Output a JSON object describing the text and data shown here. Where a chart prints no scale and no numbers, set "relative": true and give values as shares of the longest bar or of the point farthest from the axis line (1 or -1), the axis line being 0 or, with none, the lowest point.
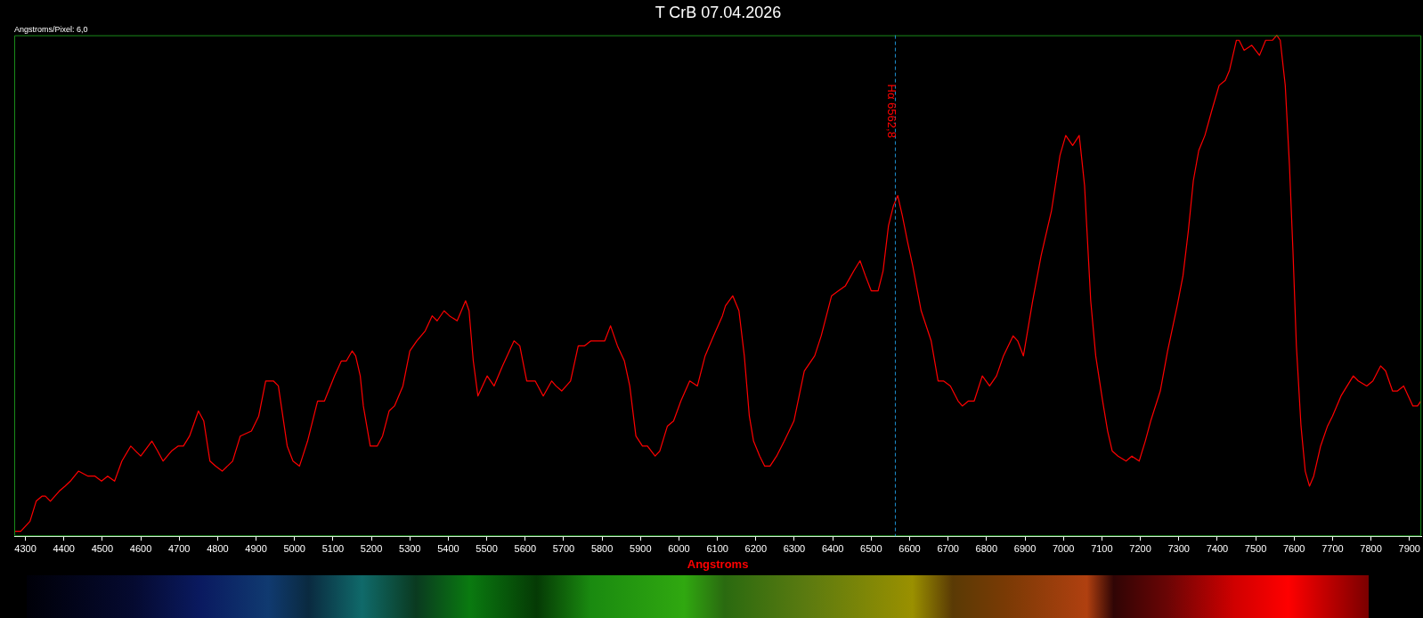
{
  "chart_data": {
    "type": "line",
    "title": "T CrB 07.04.2026",
    "xlabel": "Angstroms",
    "annotations": [
      "Angstroms/Pixel: 6,0"
    ],
    "relative": true,
    "grid": false,
    "legend": false,
    "marker": "none",
    "line_style": "solid",
    "xlim": [
      4271,
      7931
    ],
    "xticks": [
      4300,
      4400,
      4500,
      4600,
      4700,
      4800,
      4900,
      5000,
      5100,
      5200,
      5300,
      5400,
      5500,
      5600,
      5700,
      5800,
      5900,
      6000,
      6100,
      6200,
      6300,
      6400,
      6500,
      6600,
      6700,
      6800,
      6900,
      7000,
      7100,
      7200,
      7300,
      7400,
      7500,
      7600,
      7700,
      7800,
      7900
    ],
    "x": [
      4271,
      4288,
      4312,
      4328,
      4343,
      4352,
      4365,
      4388,
      4403,
      4417,
      4438,
      4463,
      4481,
      4498,
      4514,
      4532,
      4551,
      4574,
      4587,
      4600,
      4629,
      4644,
      4658,
      4680,
      4697,
      4711,
      4727,
      4750,
      4764,
      4780,
      4795,
      4812,
      4839,
      4859,
      4888,
      4907,
      4925,
      4945,
      4958,
      4981,
      4996,
      5013,
      5034,
      5060,
      5078,
      5104,
      5122,
      5135,
      5150,
      5159,
      5171,
      5179,
      5197,
      5215,
      5229,
      5246,
      5260,
      5282,
      5300,
      5318,
      5340,
      5358,
      5371,
      5389,
      5403,
      5423,
      5445,
      5454,
      5465,
      5477,
      5501,
      5519,
      5541,
      5571,
      5586,
      5604,
      5626,
      5647,
      5669,
      5680,
      5695,
      5718,
      5738,
      5754,
      5771,
      5793,
      5807,
      5822,
      5840,
      5858,
      5872,
      5888,
      5905,
      5918,
      5938,
      5950,
      5970,
      5986,
      6005,
      6028,
      6048,
      6068,
      6090,
      6113,
      6121,
      6140,
      6156,
      6170,
      6183,
      6194,
      6210,
      6223,
      6237,
      6254,
      6274,
      6299,
      6326,
      6353,
      6370,
      6397,
      6415,
      6433,
      6455,
      6471,
      6485,
      6500,
      6518,
      6531,
      6545,
      6558,
      6569,
      6581,
      6594,
      6608,
      6630,
      6656,
      6674,
      6688,
      6706,
      6726,
      6737,
      6753,
      6768,
      6789,
      6808,
      6826,
      6844,
      6869,
      6881,
      6896,
      6920,
      6942,
      6969,
      6991,
      7006,
      7024,
      7041,
      7044,
      7055,
      7071,
      7084,
      7102,
      7115,
      7127,
      7142,
      7163,
      7178,
      7197,
      7213,
      7227,
      7252,
      7271,
      7296,
      7311,
      7325,
      7338,
      7352,
      7368,
      7386,
      7405,
      7421,
      7432,
      7450,
      7457,
      7470,
      7490,
      7510,
      7526,
      7544,
      7555,
      7564,
      7577,
      7588,
      7597,
      7606,
      7618,
      7629,
      7640,
      7651,
      7669,
      7687,
      7700,
      7722,
      7738,
      7754,
      7767,
      7789,
      7805,
      7825,
      7838,
      7856,
      7869,
      7885,
      7909,
      7921,
      7930
    ],
    "series": [
      {
        "color": "#ff0000",
        "values": [
          0.01,
          0.01,
          0.03,
          0.07,
          0.08,
          0.08,
          0.07,
          0.09,
          0.1,
          0.11,
          0.13,
          0.12,
          0.12,
          0.11,
          0.12,
          0.11,
          0.15,
          0.18,
          0.17,
          0.16,
          0.19,
          0.17,
          0.15,
          0.17,
          0.18,
          0.18,
          0.2,
          0.25,
          0.23,
          0.15,
          0.14,
          0.13,
          0.15,
          0.2,
          0.21,
          0.24,
          0.31,
          0.31,
          0.3,
          0.18,
          0.15,
          0.14,
          0.19,
          0.27,
          0.27,
          0.32,
          0.35,
          0.35,
          0.37,
          0.36,
          0.32,
          0.26,
          0.18,
          0.18,
          0.2,
          0.25,
          0.26,
          0.3,
          0.37,
          0.39,
          0.41,
          0.44,
          0.43,
          0.45,
          0.44,
          0.43,
          0.47,
          0.45,
          0.35,
          0.28,
          0.32,
          0.3,
          0.34,
          0.39,
          0.38,
          0.31,
          0.31,
          0.28,
          0.31,
          0.3,
          0.29,
          0.31,
          0.38,
          0.38,
          0.39,
          0.39,
          0.39,
          0.42,
          0.38,
          0.35,
          0.3,
          0.2,
          0.18,
          0.18,
          0.16,
          0.17,
          0.22,
          0.23,
          0.27,
          0.31,
          0.3,
          0.36,
          0.4,
          0.44,
          0.46,
          0.48,
          0.45,
          0.36,
          0.24,
          0.19,
          0.16,
          0.14,
          0.14,
          0.16,
          0.19,
          0.23,
          0.33,
          0.36,
          0.4,
          0.48,
          0.49,
          0.5,
          0.53,
          0.55,
          0.52,
          0.49,
          0.49,
          0.53,
          0.62,
          0.66,
          0.68,
          0.64,
          0.59,
          0.54,
          0.45,
          0.39,
          0.31,
          0.31,
          0.3,
          0.27,
          0.26,
          0.27,
          0.27,
          0.32,
          0.3,
          0.32,
          0.36,
          0.4,
          0.39,
          0.36,
          0.47,
          0.56,
          0.65,
          0.76,
          0.8,
          0.78,
          0.8,
          0.78,
          0.7,
          0.47,
          0.36,
          0.27,
          0.21,
          0.17,
          0.16,
          0.15,
          0.16,
          0.15,
          0.19,
          0.23,
          0.29,
          0.37,
          0.46,
          0.52,
          0.61,
          0.71,
          0.77,
          0.8,
          0.85,
          0.9,
          0.91,
          0.93,
          0.99,
          0.99,
          0.97,
          0.98,
          0.96,
          0.99,
          0.99,
          1,
          0.99,
          0.9,
          0.74,
          0.57,
          0.38,
          0.22,
          0.13,
          0.1,
          0.12,
          0.18,
          0.22,
          0.24,
          0.28,
          0.3,
          0.32,
          0.31,
          0.3,
          0.31,
          0.34,
          0.33,
          0.29,
          0.29,
          0.3,
          0.26,
          0.26,
          0.27
        ]
      }
    ],
    "ref_lines": [
      {
        "axis": "x",
        "value": 6562.8,
        "label": "Hα 6562,8",
        "color": "#1e90d0",
        "line_style": "dashed"
      }
    ]
  }
}
